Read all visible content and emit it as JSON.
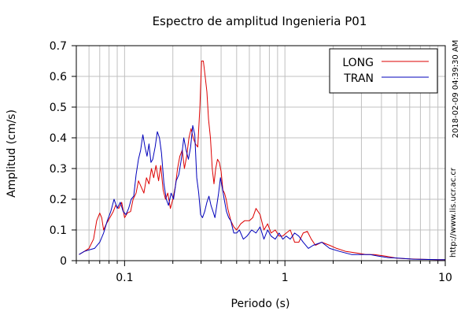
{
  "chart_data": {
    "type": "line",
    "title": "Espectro de amplitud Ingenieria P01",
    "xlabel": "Periodo (s)",
    "ylabel": "Amplitud (cm/s)",
    "x_scale": "log",
    "xlim": [
      0.05,
      10
    ],
    "ylim": [
      0,
      0.7
    ],
    "x_ticks": [
      "0.1",
      "1",
      "10"
    ],
    "y_ticks": [
      "0",
      "0.1",
      "0.2",
      "0.3",
      "0.4",
      "0.5",
      "0.6",
      "0.7"
    ],
    "grid": true,
    "legend_position": "top-right",
    "side_text": [
      "2018-02-09 04:39:30 AM",
      "http://www.lis.ucr.ac.cr"
    ],
    "series": [
      {
        "name": "LONG",
        "color": "#dd0000",
        "points": [
          [
            0.052,
            0.02
          ],
          [
            0.056,
            0.03
          ],
          [
            0.06,
            0.04
          ],
          [
            0.064,
            0.07
          ],
          [
            0.067,
            0.13
          ],
          [
            0.07,
            0.155
          ],
          [
            0.072,
            0.14
          ],
          [
            0.074,
            0.1
          ],
          [
            0.077,
            0.12
          ],
          [
            0.081,
            0.14
          ],
          [
            0.085,
            0.16
          ],
          [
            0.088,
            0.18
          ],
          [
            0.092,
            0.17
          ],
          [
            0.096,
            0.19
          ],
          [
            0.1,
            0.14
          ],
          [
            0.104,
            0.155
          ],
          [
            0.109,
            0.16
          ],
          [
            0.113,
            0.2
          ],
          [
            0.118,
            0.22
          ],
          [
            0.122,
            0.26
          ],
          [
            0.127,
            0.24
          ],
          [
            0.132,
            0.22
          ],
          [
            0.137,
            0.27
          ],
          [
            0.142,
            0.25
          ],
          [
            0.147,
            0.3
          ],
          [
            0.152,
            0.27
          ],
          [
            0.157,
            0.31
          ],
          [
            0.163,
            0.26
          ],
          [
            0.168,
            0.31
          ],
          [
            0.174,
            0.23
          ],
          [
            0.18,
            0.2
          ],
          [
            0.186,
            0.22
          ],
          [
            0.193,
            0.17
          ],
          [
            0.2,
            0.2
          ],
          [
            0.207,
            0.24
          ],
          [
            0.214,
            0.3
          ],
          [
            0.221,
            0.34
          ],
          [
            0.229,
            0.36
          ],
          [
            0.236,
            0.3
          ],
          [
            0.244,
            0.34
          ],
          [
            0.252,
            0.4
          ],
          [
            0.26,
            0.43
          ],
          [
            0.268,
            0.4
          ],
          [
            0.277,
            0.38
          ],
          [
            0.286,
            0.37
          ],
          [
            0.295,
            0.5
          ],
          [
            0.302,
            0.65
          ],
          [
            0.31,
            0.65
          ],
          [
            0.318,
            0.6
          ],
          [
            0.326,
            0.55
          ],
          [
            0.334,
            0.46
          ],
          [
            0.343,
            0.4
          ],
          [
            0.352,
            0.3
          ],
          [
            0.361,
            0.25
          ],
          [
            0.37,
            0.3
          ],
          [
            0.38,
            0.33
          ],
          [
            0.39,
            0.32
          ],
          [
            0.4,
            0.29
          ],
          [
            0.41,
            0.23
          ],
          [
            0.42,
            0.22
          ],
          [
            0.43,
            0.2
          ],
          [
            0.44,
            0.17
          ],
          [
            0.46,
            0.13
          ],
          [
            0.48,
            0.11
          ],
          [
            0.5,
            0.1
          ],
          [
            0.53,
            0.12
          ],
          [
            0.56,
            0.13
          ],
          [
            0.6,
            0.13
          ],
          [
            0.63,
            0.14
          ],
          [
            0.66,
            0.17
          ],
          [
            0.7,
            0.15
          ],
          [
            0.74,
            0.1
          ],
          [
            0.78,
            0.12
          ],
          [
            0.82,
            0.09
          ],
          [
            0.87,
            0.1
          ],
          [
            0.92,
            0.08
          ],
          [
            0.97,
            0.08
          ],
          [
            1.02,
            0.09
          ],
          [
            1.08,
            0.1
          ],
          [
            1.15,
            0.06
          ],
          [
            1.22,
            0.06
          ],
          [
            1.3,
            0.09
          ],
          [
            1.38,
            0.095
          ],
          [
            1.46,
            0.07
          ],
          [
            1.55,
            0.05
          ],
          [
            1.7,
            0.06
          ],
          [
            1.9,
            0.05
          ],
          [
            2.1,
            0.04
          ],
          [
            2.4,
            0.03
          ],
          [
            2.8,
            0.025
          ],
          [
            3.2,
            0.02
          ],
          [
            3.6,
            0.02
          ],
          [
            4.2,
            0.015
          ],
          [
            5,
            0.008
          ],
          [
            6,
            0.006
          ],
          [
            7.5,
            0.004
          ],
          [
            9,
            0.003
          ],
          [
            10,
            0.003
          ]
        ]
      },
      {
        "name": "TRAN",
        "color": "#0000bb",
        "points": [
          [
            0.052,
            0.02
          ],
          [
            0.056,
            0.03
          ],
          [
            0.06,
            0.035
          ],
          [
            0.065,
            0.04
          ],
          [
            0.07,
            0.06
          ],
          [
            0.074,
            0.09
          ],
          [
            0.078,
            0.13
          ],
          [
            0.082,
            0.16
          ],
          [
            0.086,
            0.2
          ],
          [
            0.09,
            0.17
          ],
          [
            0.094,
            0.19
          ],
          [
            0.098,
            0.16
          ],
          [
            0.102,
            0.15
          ],
          [
            0.106,
            0.17
          ],
          [
            0.11,
            0.2
          ],
          [
            0.114,
            0.21
          ],
          [
            0.118,
            0.28
          ],
          [
            0.122,
            0.33
          ],
          [
            0.126,
            0.36
          ],
          [
            0.13,
            0.41
          ],
          [
            0.134,
            0.37
          ],
          [
            0.138,
            0.34
          ],
          [
            0.142,
            0.38
          ],
          [
            0.146,
            0.32
          ],
          [
            0.15,
            0.33
          ],
          [
            0.155,
            0.37
          ],
          [
            0.16,
            0.42
          ],
          [
            0.165,
            0.4
          ],
          [
            0.17,
            0.35
          ],
          [
            0.176,
            0.25
          ],
          [
            0.182,
            0.2
          ],
          [
            0.188,
            0.18
          ],
          [
            0.195,
            0.22
          ],
          [
            0.202,
            0.2
          ],
          [
            0.21,
            0.26
          ],
          [
            0.218,
            0.28
          ],
          [
            0.226,
            0.33
          ],
          [
            0.234,
            0.4
          ],
          [
            0.242,
            0.36
          ],
          [
            0.25,
            0.33
          ],
          [
            0.258,
            0.37
          ],
          [
            0.266,
            0.44
          ],
          [
            0.274,
            0.41
          ],
          [
            0.282,
            0.27
          ],
          [
            0.29,
            0.22
          ],
          [
            0.298,
            0.15
          ],
          [
            0.306,
            0.14
          ],
          [
            0.316,
            0.16
          ],
          [
            0.326,
            0.19
          ],
          [
            0.336,
            0.21
          ],
          [
            0.346,
            0.18
          ],
          [
            0.356,
            0.16
          ],
          [
            0.366,
            0.14
          ],
          [
            0.376,
            0.18
          ],
          [
            0.386,
            0.22
          ],
          [
            0.396,
            0.27
          ],
          [
            0.406,
            0.24
          ],
          [
            0.418,
            0.2
          ],
          [
            0.432,
            0.16
          ],
          [
            0.446,
            0.14
          ],
          [
            0.46,
            0.13
          ],
          [
            0.48,
            0.09
          ],
          [
            0.5,
            0.09
          ],
          [
            0.52,
            0.1
          ],
          [
            0.55,
            0.07
          ],
          [
            0.58,
            0.08
          ],
          [
            0.62,
            0.1
          ],
          [
            0.66,
            0.09
          ],
          [
            0.7,
            0.11
          ],
          [
            0.74,
            0.07
          ],
          [
            0.78,
            0.1
          ],
          [
            0.82,
            0.08
          ],
          [
            0.87,
            0.07
          ],
          [
            0.92,
            0.09
          ],
          [
            0.97,
            0.07
          ],
          [
            1.02,
            0.08
          ],
          [
            1.08,
            0.07
          ],
          [
            1.15,
            0.09
          ],
          [
            1.22,
            0.08
          ],
          [
            1.3,
            0.06
          ],
          [
            1.4,
            0.04
          ],
          [
            1.5,
            0.05
          ],
          [
            1.7,
            0.06
          ],
          [
            1.9,
            0.04
          ],
          [
            2.2,
            0.03
          ],
          [
            2.6,
            0.02
          ],
          [
            3,
            0.02
          ],
          [
            3.4,
            0.02
          ],
          [
            3.8,
            0.015
          ],
          [
            4.4,
            0.01
          ],
          [
            5.2,
            0.008
          ],
          [
            6.3,
            0.005
          ],
          [
            7.5,
            0.004
          ],
          [
            9,
            0.003
          ],
          [
            10,
            0.003
          ]
        ]
      }
    ]
  }
}
